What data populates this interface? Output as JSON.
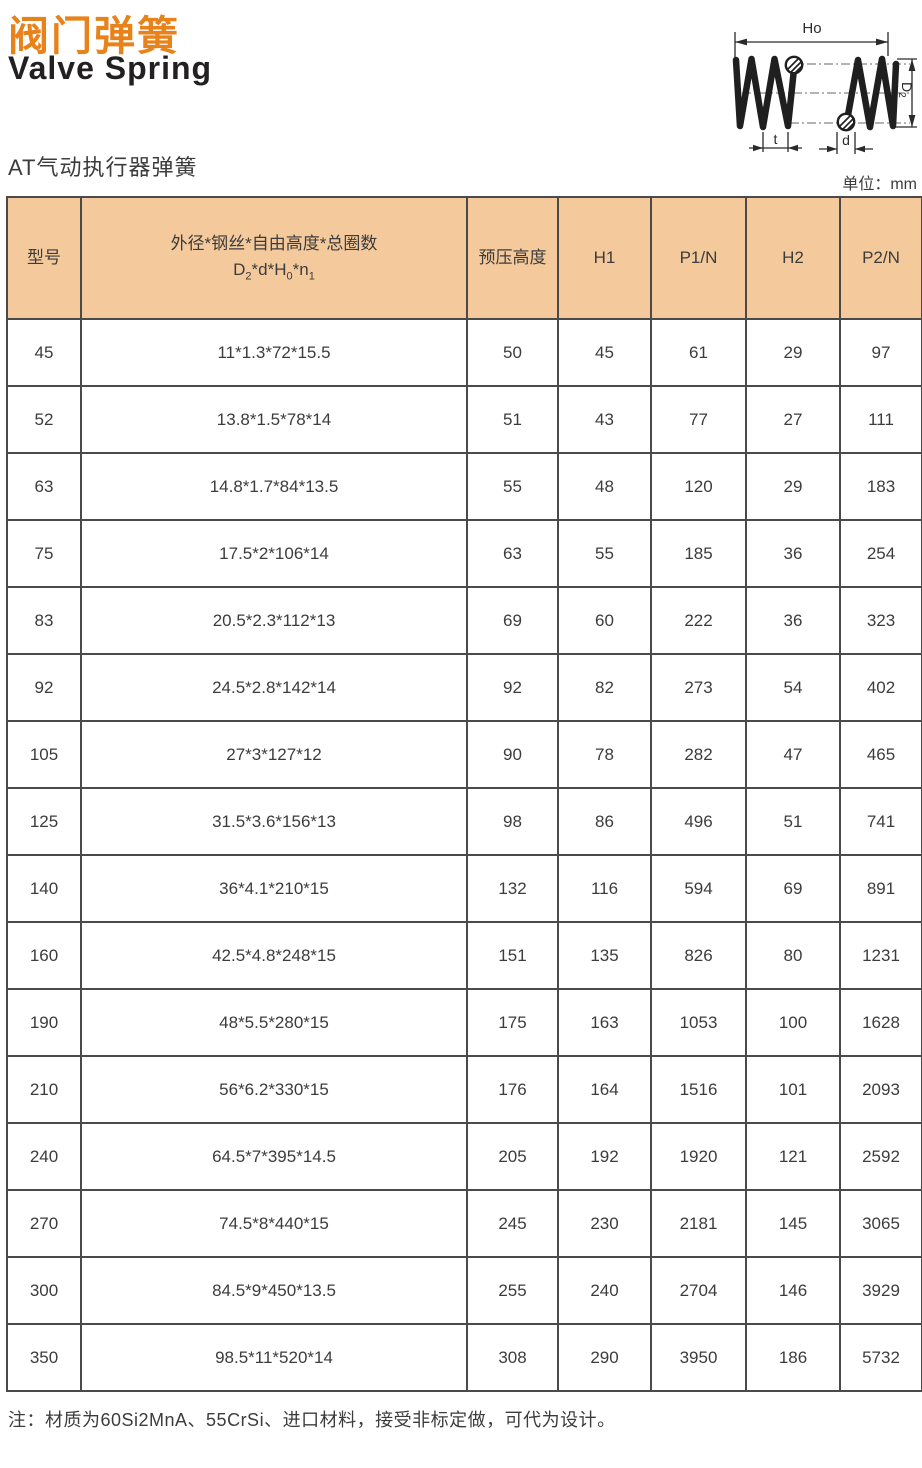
{
  "page": {
    "title_zh": "阀门弹簧",
    "title_en": "Valve Spring",
    "subtitle": "AT气动执行器弹簧",
    "unit_label": "单位：mm",
    "note": "注：材质为60Si2MnA、55CrSi、进口材料，接受非标定做，可代为设计。"
  },
  "colors": {
    "accent_orange": "#E8821A",
    "table_header_bg": "#F4C99C",
    "table_border": "#4A4A4A",
    "text": "#3C3C3C"
  },
  "diagram": {
    "free_height_label": "Ho",
    "diameter_label_main": "D",
    "diameter_label_sub": "2",
    "pitch_label": "t",
    "wire_label": "d"
  },
  "table": {
    "headers": {
      "col1": "型号",
      "col2_line1": "外径*钢丝*自由高度*总圈数",
      "col2_line2_t1": "D",
      "col2_line2_s1": "2",
      "col2_line2_t2": "*d*H",
      "col2_line2_s2": "0",
      "col2_line2_t3": "*n",
      "col2_line2_s3": "1",
      "col3": "预压高度",
      "col4": "H1",
      "col5": "P1/N",
      "col6": "H2",
      "col7": "P2/N"
    },
    "rows": [
      [
        "45",
        "11*1.3*72*15.5",
        "50",
        "45",
        "61",
        "29",
        "97"
      ],
      [
        "52",
        "13.8*1.5*78*14",
        "51",
        "43",
        "77",
        "27",
        "111"
      ],
      [
        "63",
        "14.8*1.7*84*13.5",
        "55",
        "48",
        "120",
        "29",
        "183"
      ],
      [
        "75",
        "17.5*2*106*14",
        "63",
        "55",
        "185",
        "36",
        "254"
      ],
      [
        "83",
        "20.5*2.3*112*13",
        "69",
        "60",
        "222",
        "36",
        "323"
      ],
      [
        "92",
        "24.5*2.8*142*14",
        "92",
        "82",
        "273",
        "54",
        "402"
      ],
      [
        "105",
        "27*3*127*12",
        "90",
        "78",
        "282",
        "47",
        "465"
      ],
      [
        "125",
        "31.5*3.6*156*13",
        "98",
        "86",
        "496",
        "51",
        "741"
      ],
      [
        "140",
        "36*4.1*210*15",
        "132",
        "116",
        "594",
        "69",
        "891"
      ],
      [
        "160",
        "42.5*4.8*248*15",
        "151",
        "135",
        "826",
        "80",
        "1231"
      ],
      [
        "190",
        "48*5.5*280*15",
        "175",
        "163",
        "1053",
        "100",
        "1628"
      ],
      [
        "210",
        "56*6.2*330*15",
        "176",
        "164",
        "1516",
        "101",
        "2093"
      ],
      [
        "240",
        "64.5*7*395*14.5",
        "205",
        "192",
        "1920",
        "121",
        "2592"
      ],
      [
        "270",
        "74.5*8*440*15",
        "245",
        "230",
        "2181",
        "145",
        "3065"
      ],
      [
        "300",
        "84.5*9*450*13.5",
        "255",
        "240",
        "2704",
        "146",
        "3929"
      ],
      [
        "350",
        "98.5*11*520*14",
        "308",
        "290",
        "3950",
        "186",
        "5732"
      ]
    ]
  }
}
